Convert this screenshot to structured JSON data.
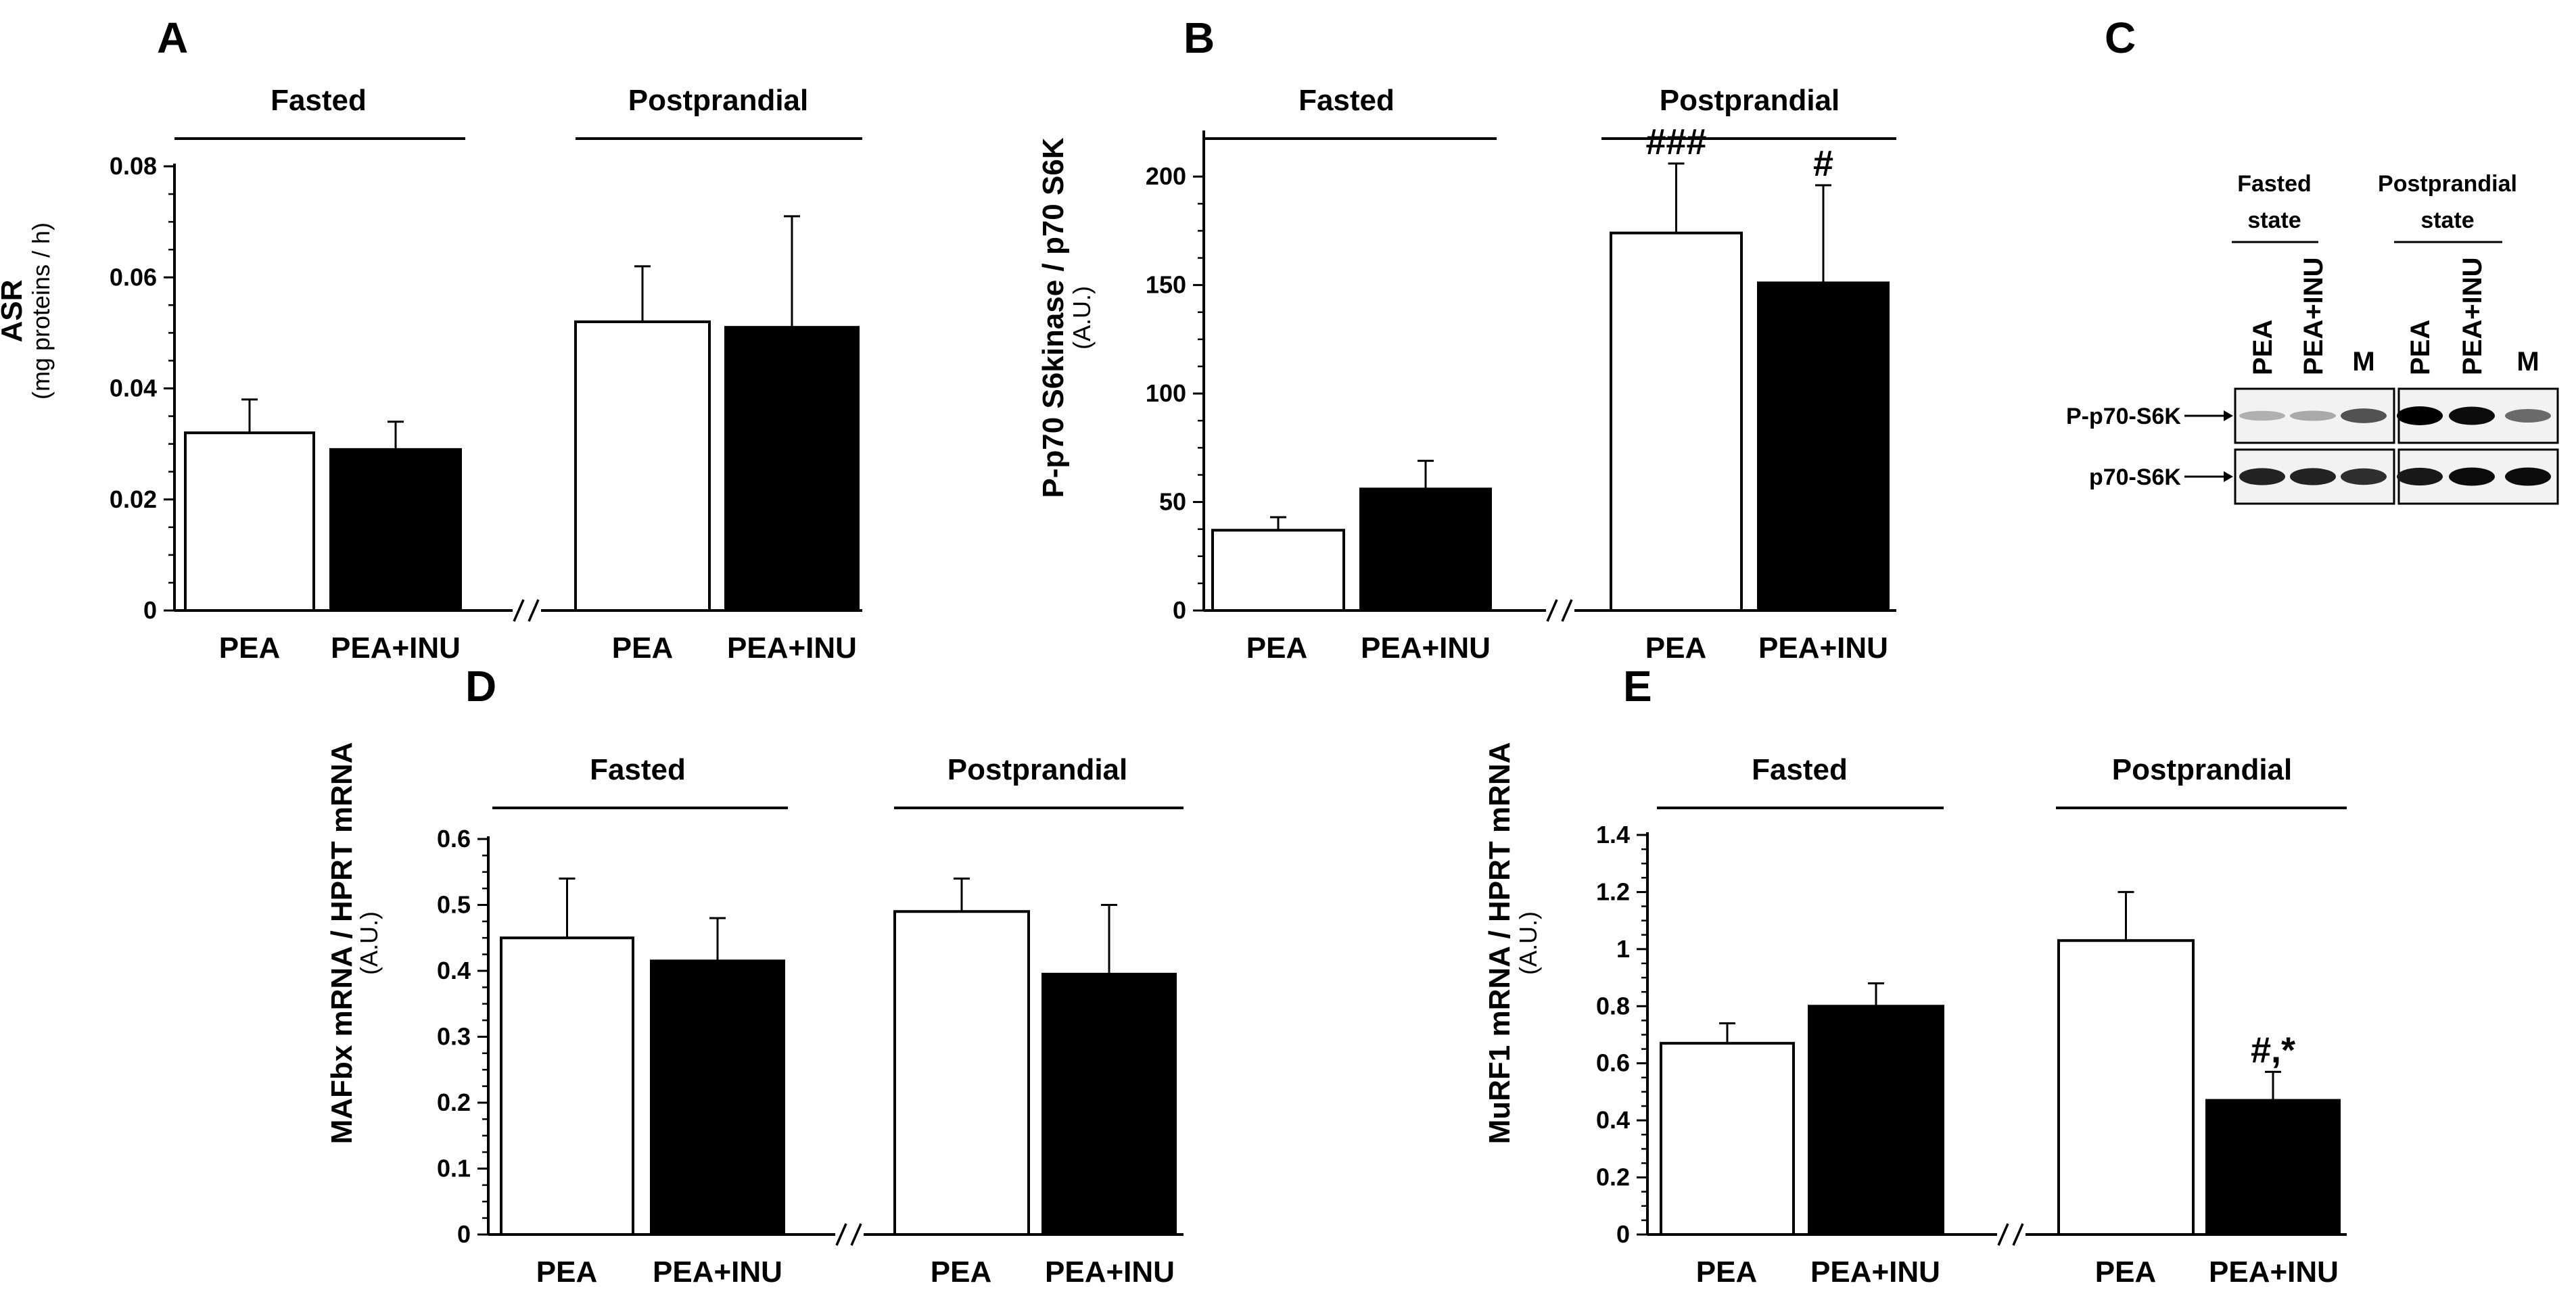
{
  "legend_colors": {
    "PEA": "#ffffff",
    "PEA+INU": "#000000",
    "outline": "#000000"
  },
  "chart_data": [
    {
      "panel": "A",
      "type": "bar",
      "groups": [
        "Fasted",
        "Postprandial"
      ],
      "categories": [
        "PEA",
        "PEA+INU"
      ],
      "ylabel": "ASR",
      "ylabel_sub": "(mg proteins / h)",
      "ylim": [
        0,
        0.08
      ],
      "yticks": [
        0,
        0.02,
        0.04,
        0.06,
        0.08
      ],
      "ytick_labels": [
        "0",
        "0.02",
        "0.04",
        "0.06",
        "0.08"
      ],
      "series": [
        {
          "name": "PEA",
          "values": [
            0.032,
            0.052
          ],
          "errors": [
            0.006,
            0.01
          ]
        },
        {
          "name": "PEA+INU",
          "values": [
            0.029,
            0.051
          ],
          "errors": [
            0.005,
            0.02
          ]
        }
      ],
      "significance": []
    },
    {
      "panel": "B",
      "type": "bar",
      "groups": [
        "Fasted",
        "Postprandial"
      ],
      "categories": [
        "PEA",
        "PEA+INU"
      ],
      "ylabel": "P-p70 S6kinase / p70 S6K",
      "ylabel_sub": "(A.U.)",
      "ylim": [
        0,
        220
      ],
      "yticks": [
        0,
        50,
        100,
        150,
        200
      ],
      "ytick_labels": [
        "0",
        "50",
        "100",
        "150",
        "200"
      ],
      "series": [
        {
          "name": "PEA",
          "values": [
            37,
            174
          ],
          "errors": [
            6,
            32
          ]
        },
        {
          "name": "PEA+INU",
          "values": [
            56,
            151
          ],
          "errors": [
            13,
            45
          ]
        }
      ],
      "significance": [
        {
          "group": 1,
          "series": 0,
          "text": "###"
        },
        {
          "group": 1,
          "series": 1,
          "text": "#"
        }
      ]
    },
    {
      "panel": "D",
      "type": "bar",
      "groups": [
        "Fasted",
        "Postprandial"
      ],
      "categories": [
        "PEA",
        "PEA+INU"
      ],
      "ylabel": "MAFbx mRNA / HPRT mRNA",
      "ylabel_sub": "(A.U.)",
      "ylim": [
        0,
        0.6
      ],
      "yticks": [
        0,
        0.1,
        0.2,
        0.3,
        0.4,
        0.5,
        0.6
      ],
      "ytick_labels": [
        "0",
        "0.1",
        "0.2",
        "0.3",
        "0.4",
        "0.5",
        "0.6"
      ],
      "series": [
        {
          "name": "PEA",
          "values": [
            0.45,
            0.49
          ],
          "errors": [
            0.09,
            0.05
          ]
        },
        {
          "name": "PEA+INU",
          "values": [
            0.415,
            0.395
          ],
          "errors": [
            0.065,
            0.105
          ]
        }
      ],
      "significance": []
    },
    {
      "panel": "E",
      "type": "bar",
      "groups": [
        "Fasted",
        "Postprandial"
      ],
      "categories": [
        "PEA",
        "PEA+INU"
      ],
      "ylabel": "MuRF1 mRNA / HPRT mRNA",
      "ylabel_sub": "(A.U.)",
      "ylim": [
        0,
        1.4
      ],
      "yticks": [
        0,
        0.2,
        0.4,
        0.6,
        0.8,
        1,
        1.2,
        1.4
      ],
      "ytick_labels": [
        "0",
        "0.2",
        "0.4",
        "0.6",
        "0.8",
        "1",
        "1.2",
        "1.4"
      ],
      "series": [
        {
          "name": "PEA",
          "values": [
            0.67,
            1.03
          ],
          "errors": [
            0.07,
            0.17
          ]
        },
        {
          "name": "PEA+INU",
          "values": [
            0.8,
            0.47
          ],
          "errors": [
            0.08,
            0.1
          ]
        }
      ],
      "significance": [
        {
          "group": 1,
          "series": 1,
          "text": "#,*"
        }
      ]
    }
  ],
  "western_blot": {
    "panel": "C",
    "headers": [
      "Fasted state",
      "Postprandial state"
    ],
    "lanes": [
      "PEA",
      "PEA+INU",
      "M",
      "PEA",
      "PEA+INU",
      "M"
    ],
    "rows": [
      "P-p70-S6K",
      "p70-S6K"
    ],
    "band_intensity": [
      [
        0.25,
        0.28,
        0.65,
        1.0,
        0.95,
        0.55
      ],
      [
        0.85,
        0.85,
        0.8,
        0.9,
        0.95,
        0.95
      ]
    ]
  }
}
